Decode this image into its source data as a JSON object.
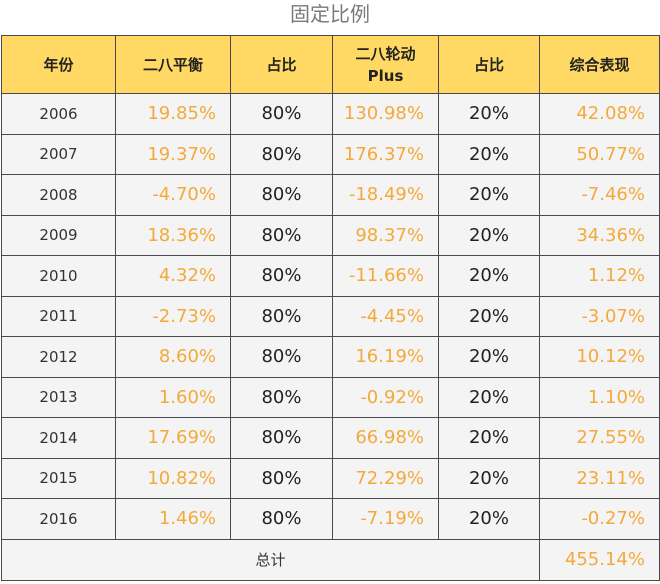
{
  "title": "固定比例",
  "colors": {
    "header_bg": "#ffd963",
    "value_orange": "#f4a93a",
    "cell_bg": "#f4f4f4"
  },
  "headers": [
    "年份",
    "二八平衡",
    "占比",
    "二八轮动 Plus",
    "占比",
    "综合表现"
  ],
  "rows": [
    {
      "year": "2006",
      "balance": "19.85%",
      "ratio1": "80%",
      "rotation": "130.98%",
      "ratio2": "20%",
      "combined": "42.08%"
    },
    {
      "year": "2007",
      "balance": "19.37%",
      "ratio1": "80%",
      "rotation": "176.37%",
      "ratio2": "20%",
      "combined": "50.77%"
    },
    {
      "year": "2008",
      "balance": "-4.70%",
      "ratio1": "80%",
      "rotation": "-18.49%",
      "ratio2": "20%",
      "combined": "-7.46%"
    },
    {
      "year": "2009",
      "balance": "18.36%",
      "ratio1": "80%",
      "rotation": "98.37%",
      "ratio2": "20%",
      "combined": "34.36%"
    },
    {
      "year": "2010",
      "balance": "4.32%",
      "ratio1": "80%",
      "rotation": "-11.66%",
      "ratio2": "20%",
      "combined": "1.12%"
    },
    {
      "year": "2011",
      "balance": "-2.73%",
      "ratio1": "80%",
      "rotation": "-4.45%",
      "ratio2": "20%",
      "combined": "-3.07%"
    },
    {
      "year": "2012",
      "balance": "8.60%",
      "ratio1": "80%",
      "rotation": "16.19%",
      "ratio2": "20%",
      "combined": "10.12%"
    },
    {
      "year": "2013",
      "balance": "1.60%",
      "ratio1": "80%",
      "rotation": "-0.92%",
      "ratio2": "20%",
      "combined": "1.10%"
    },
    {
      "year": "2014",
      "balance": "17.69%",
      "ratio1": "80%",
      "rotation": "66.98%",
      "ratio2": "20%",
      "combined": "27.55%"
    },
    {
      "year": "2015",
      "balance": "10.82%",
      "ratio1": "80%",
      "rotation": "72.29%",
      "ratio2": "20%",
      "combined": "23.11%"
    },
    {
      "year": "2016",
      "balance": "1.46%",
      "ratio1": "80%",
      "rotation": "-7.19%",
      "ratio2": "20%",
      "combined": "-0.27%"
    }
  ],
  "total": {
    "label": "总计",
    "value": "455.14%"
  }
}
